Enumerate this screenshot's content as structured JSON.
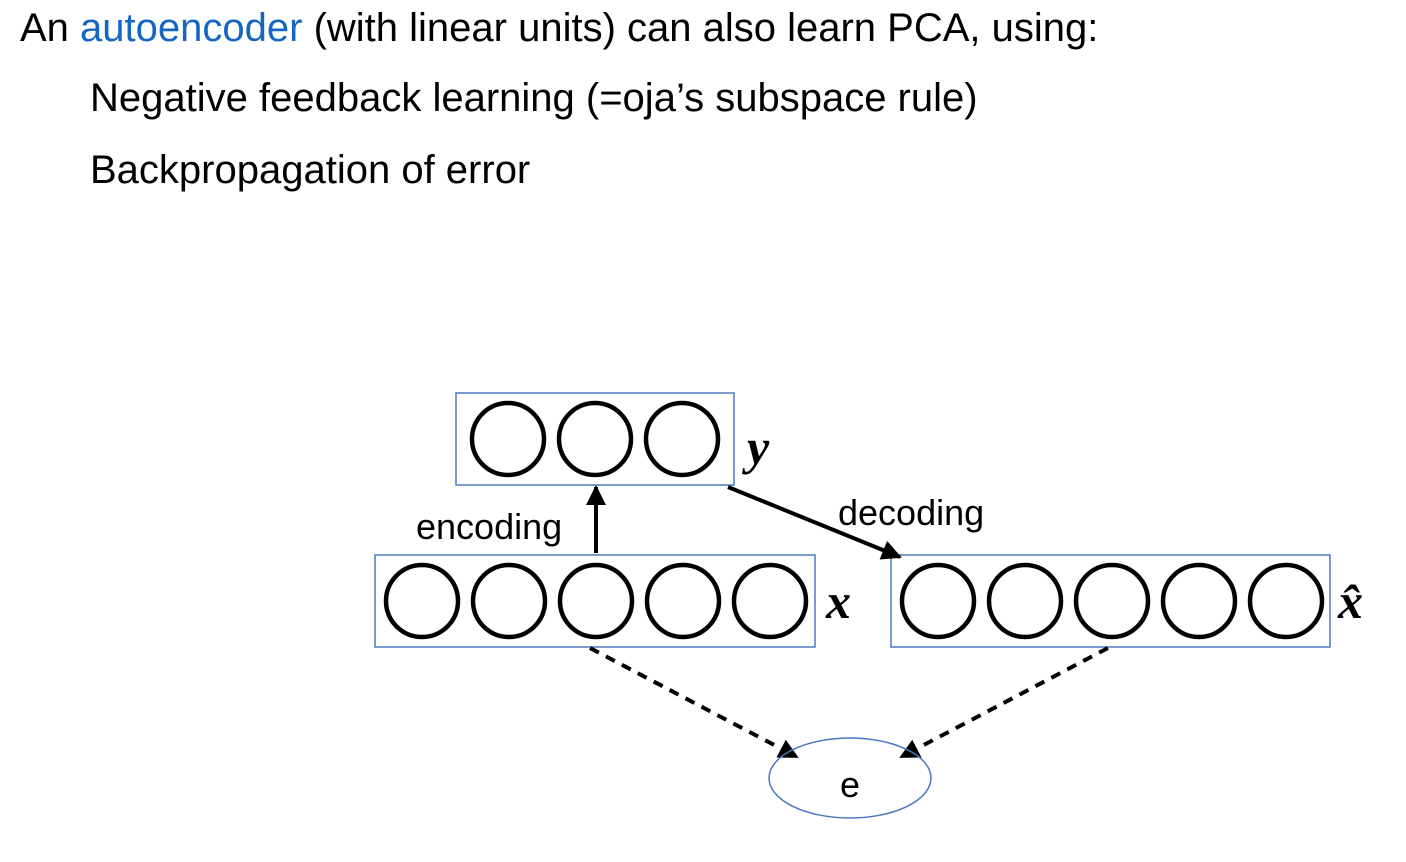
{
  "text": {
    "line1_prefix": "An ",
    "line1_keyword": "autoencoder",
    "line1_suffix": " (with linear units) can also learn PCA, using:",
    "line2": "Negative feedback learning (=oja’s subspace rule)",
    "line3": "Backpropagation of error"
  },
  "diagram": {
    "encoding_label": "encoding",
    "decoding_label": "decoding",
    "y_label": "y",
    "x_label": "x",
    "xhat_label": "x̂",
    "error_label": "e",
    "hidden_units": 3,
    "input_units": 5,
    "output_units": 5
  },
  "colors": {
    "keyword": "#1566c0",
    "box_border": "#4a78c0"
  }
}
